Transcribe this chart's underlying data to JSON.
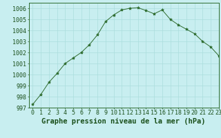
{
  "x": [
    0,
    1,
    2,
    3,
    4,
    5,
    6,
    7,
    8,
    9,
    10,
    11,
    12,
    13,
    14,
    15,
    16,
    17,
    18,
    19,
    20,
    21,
    22,
    23
  ],
  "y": [
    997.3,
    998.2,
    999.3,
    1000.1,
    1001.0,
    1001.5,
    1002.0,
    1002.7,
    1003.6,
    1004.8,
    1005.4,
    1005.85,
    1006.0,
    1006.05,
    1005.8,
    1005.5,
    1005.85,
    1005.0,
    1004.5,
    1004.1,
    1003.7,
    1003.0,
    1002.5,
    1001.7
  ],
  "line_color": "#2d6b2d",
  "marker": "*",
  "marker_size": 3,
  "bg_color": "#c8eef0",
  "grid_color": "#aadddd",
  "xlabel": "Graphe pression niveau de la mer (hPa)",
  "xlabel_fontsize": 7.5,
  "xlabel_color": "#1a4f1a",
  "ylim": [
    997,
    1006.5
  ],
  "yticks": [
    997,
    998,
    999,
    1000,
    1001,
    1002,
    1003,
    1004,
    1005,
    1006
  ],
  "xlim": [
    -0.5,
    23
  ],
  "xticks": [
    0,
    1,
    2,
    3,
    4,
    5,
    6,
    7,
    8,
    9,
    10,
    11,
    12,
    13,
    14,
    15,
    16,
    17,
    18,
    19,
    20,
    21,
    22,
    23
  ],
  "tick_fontsize": 6,
  "tick_color": "#1a4f1a",
  "spine_color": "#2d6b2d"
}
